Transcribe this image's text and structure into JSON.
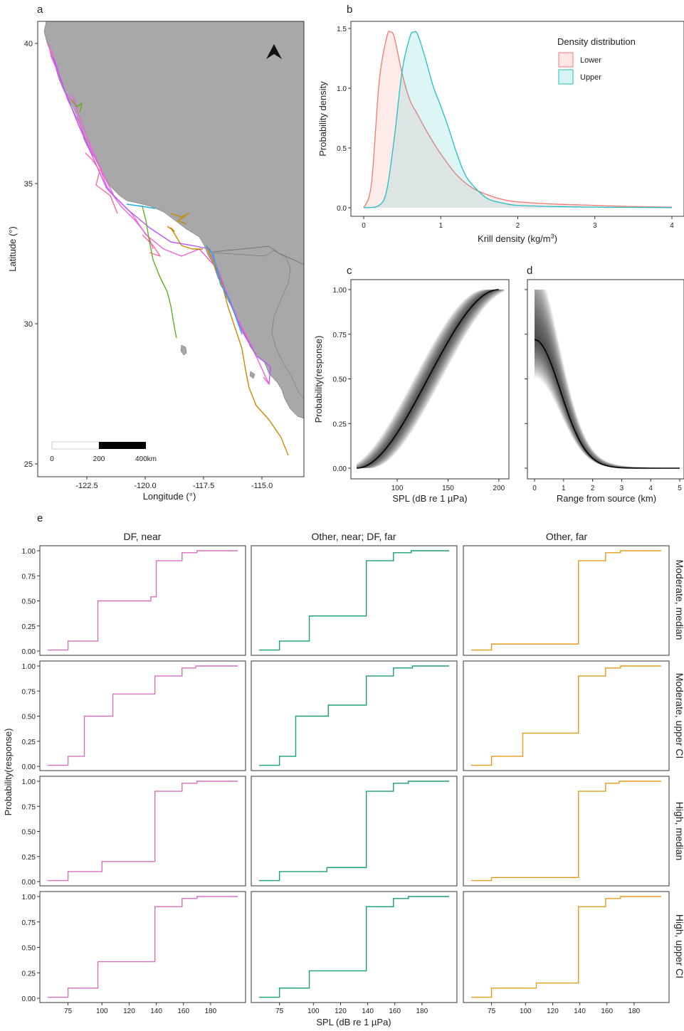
{
  "panel_labels": {
    "a": "a",
    "b": "b",
    "c": "c",
    "d": "d",
    "e": "e"
  },
  "colors": {
    "lower": "#f07a74",
    "upper": "#1fbfc4",
    "pink": "#d670bd",
    "green": "#1a9e77",
    "orange": "#e39c1c",
    "curve": "#000000",
    "land": "#a8a8a8"
  },
  "map": {
    "xlabel": "Longitude (°)",
    "ylabel": "Latitude (°)",
    "xticks": [
      "-122.5",
      "-120.0",
      "-117.5",
      "-115.0"
    ],
    "yticks": [
      "40",
      "35",
      "30",
      "25"
    ],
    "scalebar_labels": [
      "0",
      "200",
      "400km"
    ],
    "north_arrow": "north-arrow-icon",
    "track_colors": [
      "#f25fdd",
      "#ff6699",
      "#66aa22",
      "#cc8800",
      "#22aadd",
      "#bb55ff"
    ]
  },
  "chart_data": [
    {
      "type": "line",
      "panel": "b",
      "xlabel": "Krill density (kg/m",
      "xlabel_sup": "3",
      "xlabel_end": ")",
      "ylabel": "Probability density",
      "xticks": [
        "0",
        "1",
        "2",
        "3",
        "4"
      ],
      "yticks": [
        "0.0",
        "0.5",
        "1.0",
        "1.5"
      ],
      "xlim": [
        0,
        4
      ],
      "ylim": [
        0,
        1.5
      ],
      "legend_title": "Density distribution",
      "legend_position": "top-right",
      "series": [
        {
          "name": "Lower",
          "x": [
            0,
            0.1,
            0.2,
            0.3,
            0.35,
            0.4,
            0.5,
            0.6,
            0.7,
            0.8,
            0.9,
            1.0,
            1.2,
            1.4,
            1.6,
            1.8,
            2.0,
            2.5,
            3.0,
            3.5,
            4.0
          ],
          "y": [
            0,
            0.2,
            1.05,
            1.43,
            1.47,
            1.42,
            1.12,
            0.9,
            0.78,
            0.66,
            0.55,
            0.45,
            0.28,
            0.17,
            0.11,
            0.07,
            0.05,
            0.03,
            0.02,
            0.01,
            0.005
          ]
        },
        {
          "name": "Upper",
          "x": [
            0,
            0.2,
            0.3,
            0.4,
            0.5,
            0.6,
            0.65,
            0.7,
            0.8,
            0.9,
            1.0,
            1.1,
            1.2,
            1.3,
            1.4,
            1.6,
            1.8,
            2.0,
            2.5,
            3.0,
            3.5,
            4.0
          ],
          "y": [
            0,
            0.02,
            0.15,
            0.6,
            1.15,
            1.43,
            1.47,
            1.45,
            1.25,
            1.02,
            0.85,
            0.67,
            0.47,
            0.3,
            0.2,
            0.08,
            0.04,
            0.02,
            0.01,
            0.005,
            0.003,
            0.001
          ]
        }
      ]
    },
    {
      "type": "line",
      "panel": "c",
      "xlabel": "SPL (dB re 1 µPa)",
      "ylabel": "Probability(response)",
      "xticks": [
        "100",
        "150",
        "200"
      ],
      "yticks": [
        "0.00",
        "0.25",
        "0.50",
        "0.75",
        "1.00"
      ],
      "xlim": [
        60,
        205
      ],
      "ylim": [
        0,
        1
      ],
      "series": [
        {
          "x": [
            60,
            80,
            100,
            120,
            140,
            160,
            180,
            200
          ],
          "y": [
            0,
            0.01,
            0.05,
            0.15,
            0.32,
            0.55,
            0.8,
            1.0
          ]
        }
      ]
    },
    {
      "type": "line",
      "panel": "d",
      "xlabel": "Range from source (km)",
      "ylabel": "",
      "xticks": [
        "0",
        "1",
        "2",
        "3",
        "4",
        "5"
      ],
      "yticks": [
        "0.00",
        "0.25",
        "0.50",
        "0.75",
        "1.00"
      ],
      "xlim": [
        0,
        5
      ],
      "ylim": [
        0,
        1
      ],
      "series": [
        {
          "x": [
            0,
            0.5,
            1,
            1.5,
            2,
            2.5,
            3,
            4,
            5
          ],
          "y": [
            0.72,
            0.52,
            0.3,
            0.14,
            0.05,
            0.015,
            0.005,
            0.001,
            0
          ]
        }
      ]
    },
    {
      "type": "line",
      "panel": "e",
      "xlabel": "SPL (dB re 1 µPa)",
      "ylabel": "Probability(response)",
      "xticks": [
        "75",
        "100",
        "120",
        "140",
        "160",
        "180"
      ],
      "yticks": [
        "0.00",
        "0.25",
        "0.50",
        "0.75",
        "1.00"
      ],
      "xlim": [
        55,
        210
      ],
      "ylim": [
        0,
        1
      ],
      "columns": [
        "DF, near",
        "Other, near;   DF, far",
        "Other, far"
      ],
      "rows": [
        "Moderate, median",
        "Moderate, upper CI",
        "High, median",
        "High, upper CI"
      ],
      "step_x": [
        [
          60,
          75,
          97,
          136,
          140,
          159,
          170,
          200
        ],
        [
          60,
          75,
          97,
          139,
          159,
          172,
          200
        ],
        [
          60,
          75,
          139,
          159,
          170,
          200
        ],
        [
          60,
          75,
          87,
          108,
          139,
          159,
          169,
          200
        ],
        [
          60,
          75,
          87,
          111,
          139,
          159,
          173,
          200
        ],
        [
          60,
          75,
          98,
          139,
          159,
          170,
          200
        ],
        [
          60,
          75,
          100,
          139,
          159,
          170,
          200
        ],
        [
          60,
          75,
          110,
          139,
          159,
          170,
          200
        ],
        [
          60,
          75,
          139,
          159,
          169,
          200
        ],
        [
          60,
          75,
          97,
          139,
          159,
          170,
          200
        ],
        [
          60,
          75,
          97,
          139,
          159,
          170,
          200
        ],
        [
          60,
          75,
          108,
          139,
          159,
          170,
          200
        ]
      ],
      "step_y": [
        [
          0.01,
          0.1,
          0.5,
          0.54,
          0.9,
          0.98,
          1.0,
          1.0
        ],
        [
          0.01,
          0.1,
          0.35,
          0.9,
          0.98,
          1.0,
          1.0
        ],
        [
          0.01,
          0.07,
          0.9,
          0.98,
          1.0,
          1.0
        ],
        [
          0.01,
          0.1,
          0.5,
          0.72,
          0.9,
          0.98,
          1.0,
          1.0
        ],
        [
          0.01,
          0.1,
          0.5,
          0.61,
          0.9,
          0.98,
          1.0,
          1.0
        ],
        [
          0.01,
          0.1,
          0.33,
          0.9,
          0.98,
          1.0,
          1.0
        ],
        [
          0.01,
          0.1,
          0.2,
          0.9,
          0.98,
          1.0,
          1.0
        ],
        [
          0.01,
          0.1,
          0.14,
          0.9,
          0.98,
          1.0,
          1.0
        ],
        [
          0.01,
          0.04,
          0.9,
          0.98,
          1.0,
          1.0
        ],
        [
          0.01,
          0.1,
          0.36,
          0.9,
          0.98,
          1.0,
          1.0
        ],
        [
          0.01,
          0.1,
          0.27,
          0.9,
          0.98,
          1.0,
          1.0
        ],
        [
          0.01,
          0.1,
          0.15,
          0.9,
          0.98,
          1.0,
          1.0
        ]
      ]
    }
  ]
}
